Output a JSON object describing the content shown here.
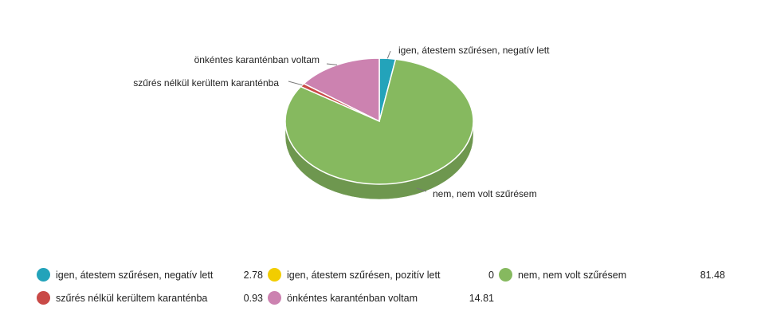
{
  "chart_data": {
    "type": "pie",
    "title": "",
    "slices": [
      {
        "label": "igen, átestem szűrésen, negatív lett",
        "value": 2.78,
        "display": "2.78",
        "color": "#23a3ba"
      },
      {
        "label": "igen, átestem szűrésen, pozitív lett",
        "value": 0,
        "display": "0",
        "color": "#f2cd00"
      },
      {
        "label": "nem, nem volt szűrésem",
        "value": 81.48,
        "display": "81.48",
        "color": "#86b95f"
      },
      {
        "label": "szűrés nélkül kerültem karanténba",
        "value": 0.93,
        "display": "0.93",
        "color": "#c94a47"
      },
      {
        "label": "önkéntes karanténban voltam",
        "value": 14.81,
        "display": "14.81",
        "color": "#cc82b0"
      }
    ],
    "side_color": "#6e974f",
    "legend_position": "bottom"
  }
}
